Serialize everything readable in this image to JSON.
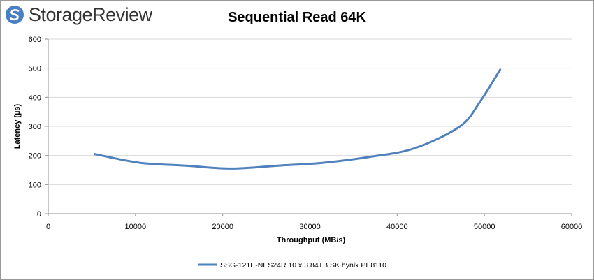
{
  "logo": {
    "text": "StorageReview"
  },
  "colors": {
    "series": "#4f81bd",
    "grid": "#d9d9d9",
    "axis": "#8c8c8c",
    "logo_accent": "#4a7fc1"
  },
  "chart_data": {
    "type": "line",
    "title": "Sequential Read 64K",
    "xlabel": "Throughput (MB/s)",
    "ylabel": "Latency (µs)",
    "xlim": [
      0,
      60000
    ],
    "ylim": [
      0,
      600
    ],
    "xticks": [
      0,
      10000,
      20000,
      30000,
      40000,
      50000,
      60000
    ],
    "yticks": [
      0,
      100,
      200,
      300,
      400,
      500,
      600
    ],
    "grid": true,
    "legend_position": "bottom",
    "series": [
      {
        "name": "SSG-121E-NES24R 10 x 3.84TB SK hynix PE8110",
        "color": "#4f81bd",
        "x": [
          5300,
          10500,
          15800,
          21000,
          26300,
          31500,
          36800,
          42000,
          47200,
          49500,
          51800
        ],
        "y": [
          205,
          175,
          165,
          155,
          165,
          175,
          195,
          225,
          300,
          385,
          495
        ]
      }
    ]
  }
}
